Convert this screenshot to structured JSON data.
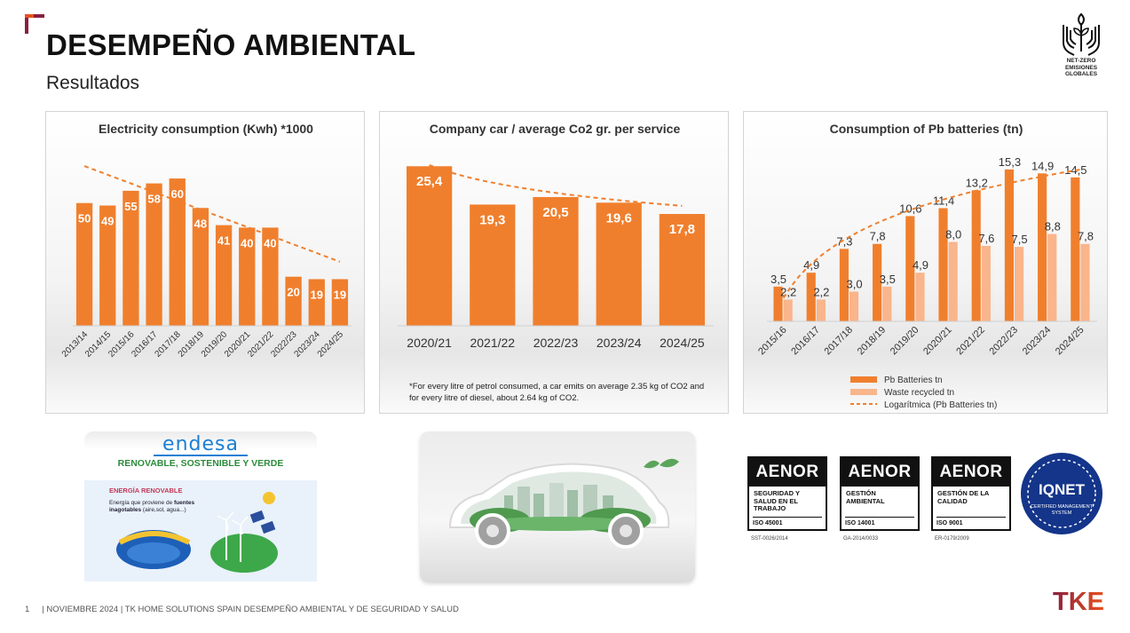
{
  "header": {
    "title": "DESEMPEÑO AMBIENTAL",
    "subtitle": "Resultados",
    "badge_lines": [
      "NET-ZERO",
      "EMISIONES",
      "GLOBALES"
    ]
  },
  "colors": {
    "accent": "#f07f2d",
    "light_accent": "#f9b58c",
    "brand": "#8a1f3f"
  },
  "chart_data": [
    {
      "type": "bar",
      "title": "Electricity  consumption (Kwh) *1000",
      "categories": [
        "2013/14",
        "2014/15",
        "2015/16",
        "2016/17",
        "2017/18",
        "2018/19",
        "2019/20",
        "2020/21",
        "2021/22",
        "2022/23",
        "2023/24",
        "2024/25"
      ],
      "series": [
        {
          "values": [
            50,
            49,
            55,
            58,
            60,
            48,
            41,
            40,
            40,
            20,
            19,
            19
          ],
          "labels": [
            "50",
            "49",
            "55",
            "58",
            "60",
            "48",
            "41",
            "40",
            "40",
            "20",
            "19",
            "19"
          ]
        }
      ],
      "trendline": {
        "type": "linear",
        "style": "dashed"
      },
      "ylim": [
        0,
        64
      ],
      "legend": "none",
      "grid": false
    },
    {
      "type": "bar",
      "title": "Company car / average Co2 gr. per service",
      "categories": [
        "2020/21",
        "2021/22",
        "2022/23",
        "2023/24",
        "2024/25"
      ],
      "series": [
        {
          "values": [
            25.4,
            19.3,
            20.5,
            19.6,
            17.8
          ],
          "labels": [
            "25,4",
            "19,3",
            "20,5",
            "19,6",
            "17,8"
          ]
        }
      ],
      "trendline": {
        "type": "logarithmic",
        "style": "dashed"
      },
      "ylim": [
        0,
        26
      ],
      "legend": "none",
      "grid": false,
      "footnote": "*For every litre of petrol consumed, a car emits on average 2.35 kg of CO2 and for every litre of diesel, about 2.64 kg of CO2."
    },
    {
      "type": "bar",
      "title": "Consumption of Pb batteries (tn)",
      "categories": [
        "2015/16",
        "2016/17",
        "2017/18",
        "2018/19",
        "2019/20",
        "2020/21",
        "2021/22",
        "2022/23",
        "2023/24",
        "2024/25"
      ],
      "series": [
        {
          "name": "Pb Batteries tn",
          "values": [
            3.5,
            4.9,
            7.3,
            7.8,
            10.6,
            11.4,
            13.2,
            15.3,
            14.9,
            14.5
          ],
          "labels": [
            "3,5",
            "4,9",
            "7,3",
            "7,8",
            "10,6",
            "11,4",
            "13,2",
            "15,3",
            "14,9",
            "14,5"
          ]
        },
        {
          "name": "Waste recycled tn",
          "values": [
            2.2,
            2.2,
            3.0,
            3.5,
            4.9,
            8.0,
            7.6,
            7.5,
            8.8,
            7.8
          ],
          "labels": [
            "2,2",
            "2,2",
            "3,0",
            "3,5",
            "4,9",
            "8,0",
            "7,6",
            "7,5",
            "8,8",
            "7,8"
          ]
        }
      ],
      "trendline": {
        "name": "Logarítmica (Pb Batteries tn)",
        "type": "logarithmic",
        "style": "dashed"
      },
      "ylim": [
        0,
        16
      ],
      "legend": "bottom",
      "grid": false
    }
  ],
  "endesa": {
    "logo": "endesa",
    "tagline": "RENOVABLE, SOSTENIBLE Y VERDE",
    "card_title": "ENERGÍA RENOVABLE",
    "card_text_1": "Energía que proviene de ",
    "card_text_bold": "fuentes inagotables",
    "card_text_2": " (aire,sol, agua...)"
  },
  "certifications": [
    {
      "brand": "AENOR",
      "name": "SEGURIDAD Y SALUD EN EL TRABAJO",
      "iso": "ISO 45001",
      "code": "SST-0026/2014"
    },
    {
      "brand": "AENOR",
      "name": "GESTIÓN AMBIENTAL",
      "iso": "ISO 14001",
      "code": "GA-2014/0033"
    },
    {
      "brand": "AENOR",
      "name": "GESTIÓN DE LA CALIDAD",
      "iso": "ISO 9001",
      "code": "ER-0179/2009"
    }
  ],
  "iqnet": {
    "label": "IQNET",
    "sub": "CERTIFIED MANAGEMENT SYSTEM"
  },
  "footer": {
    "page": "1",
    "text": "| NOVIEMBRE 2024  | TK HOME SOLUTIONS SPAIN DESEMPEÑO AMBIENTAL Y DE SEGURIDAD Y SALUD"
  },
  "brand_logo": "TKE"
}
